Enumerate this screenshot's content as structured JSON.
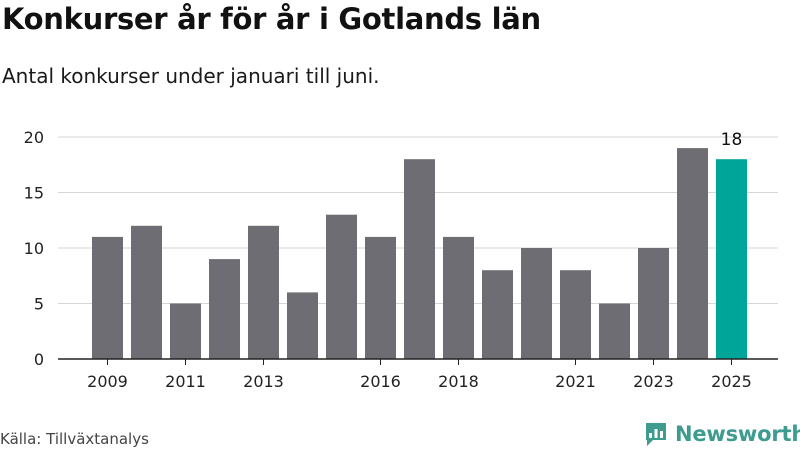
{
  "header": {
    "title": "Konkurser år för år i Gotlands län",
    "subtitle": "Antal konkurser under januari till juni."
  },
  "footer": {
    "source": "Källa: Tillväxtanalys",
    "brand": "Newsworthy"
  },
  "colors": {
    "bar": "#6e6d73",
    "highlight": "#00a59a",
    "grid": "#d6d6d6",
    "axis": "#222222",
    "brand": "#3d9b8f"
  },
  "chart_data": {
    "type": "bar",
    "x": [
      2009,
      2010,
      2011,
      2012,
      2013,
      2014,
      2015,
      2016,
      2017,
      2018,
      2019,
      2020,
      2021,
      2022,
      2023,
      2024,
      2025
    ],
    "values": [
      11,
      12,
      5,
      9,
      12,
      6,
      13,
      11,
      18,
      11,
      8,
      10,
      8,
      5,
      10,
      19,
      18
    ],
    "highlight_index": 16,
    "data_labels": [
      {
        "index": 16,
        "text": "18"
      }
    ],
    "x_tick_labels": [
      "2009",
      "2011",
      "2013",
      "2016",
      "2018",
      "2021",
      "2023",
      "2025"
    ],
    "y_ticks": [
      0,
      5,
      10,
      15,
      20
    ],
    "ylim": [
      0,
      20
    ],
    "grid": true,
    "title": "Konkurser år för år i Gotlands län",
    "subtitle": "Antal konkurser under januari till juni.",
    "xlabel": "",
    "ylabel": ""
  }
}
